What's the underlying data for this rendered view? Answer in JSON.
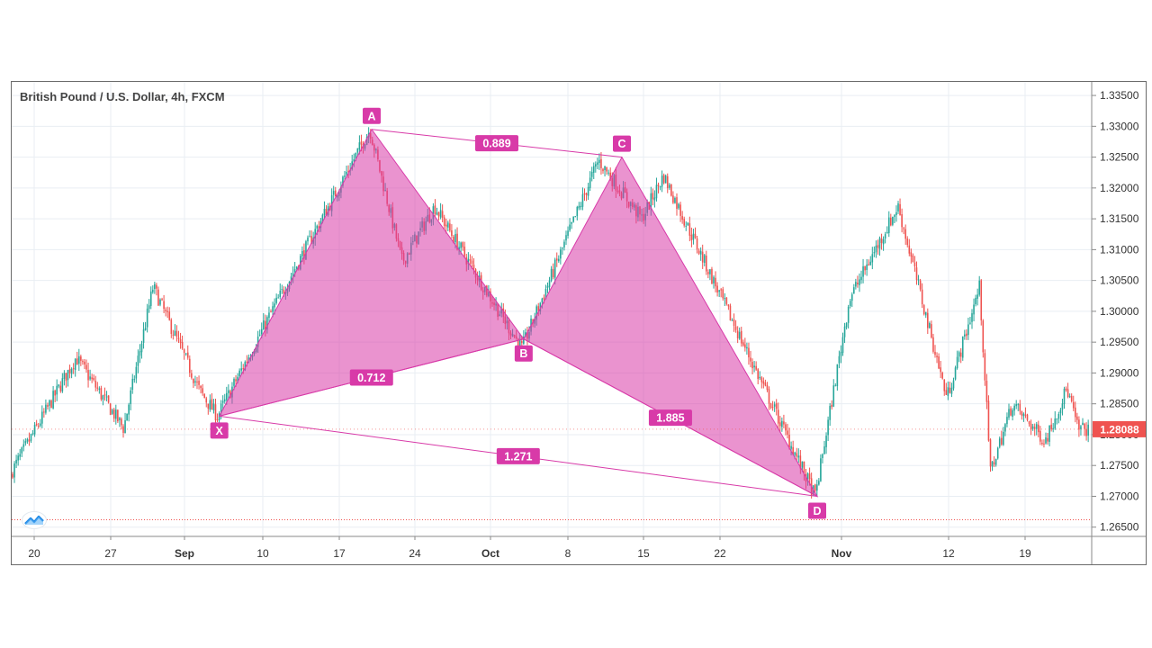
{
  "app": {
    "title": "British Pound / U.S. Dollar, 4h, FXCM",
    "current_price": "1.28088"
  },
  "colors": {
    "up": "#26a69a",
    "down": "#ef5350",
    "pattern": "#d83aa8",
    "pattern_fill": "rgba(216,58,168,0.55)",
    "grid": "#e9eef3",
    "axis_text": "#333333",
    "price_badge": "#ef5350",
    "dotted_line": "#ef5350"
  },
  "chart_data": {
    "type": "candlestick",
    "title": "British Pound / U.S. Dollar, 4h, FXCM",
    "x_ticks": [
      "20",
      "27",
      "Sep",
      "10",
      "17",
      "24",
      "Oct",
      "8",
      "15",
      "22",
      "Nov",
      "12",
      "19"
    ],
    "y_ticks": [
      "1.33500",
      "1.33000",
      "1.32500",
      "1.32000",
      "1.31500",
      "1.31000",
      "1.30500",
      "1.30000",
      "1.29500",
      "1.29000",
      "1.28500",
      "1.28000",
      "1.27500",
      "1.27000",
      "1.26500"
    ],
    "ylim": [
      1.2635,
      1.3372
    ],
    "last_price": 1.28088,
    "price_path_key_points": [
      {
        "date": "Aug 17",
        "price": 1.2705
      },
      {
        "date": "Aug 24",
        "price": 1.2925
      },
      {
        "date": "Aug 28",
        "price": 1.281
      },
      {
        "date": "Aug 30",
        "price": 1.304
      },
      {
        "date": "Sep 3",
        "price": 1.287
      },
      {
        "date": "Sep 5",
        "price": 1.283
      },
      {
        "date": "Sep 11",
        "price": 1.3
      },
      {
        "date": "Sep 20",
        "price": 1.3295
      },
      {
        "date": "Sep 23",
        "price": 1.308
      },
      {
        "date": "Sep 26",
        "price": 1.317
      },
      {
        "date": "Oct 4",
        "price": 1.294
      },
      {
        "date": "Oct 11",
        "price": 1.3245
      },
      {
        "date": "Oct 15",
        "price": 1.315
      },
      {
        "date": "Oct 17",
        "price": 1.322
      },
      {
        "date": "Oct 30",
        "price": 1.27
      },
      {
        "date": "Nov 2",
        "price": 1.302
      },
      {
        "date": "Nov 7",
        "price": 1.317
      },
      {
        "date": "Nov 12",
        "price": 1.286
      },
      {
        "date": "Nov 15",
        "price": 1.304
      },
      {
        "date": "Nov 16",
        "price": 1.274
      },
      {
        "date": "Nov 18",
        "price": 1.285
      },
      {
        "date": "Nov 21",
        "price": 1.279
      },
      {
        "date": "Nov 23",
        "price": 1.2875
      },
      {
        "date": "Nov 24",
        "price": 1.2809
      }
    ],
    "pattern": {
      "points": [
        {
          "label": "X",
          "date": "Sep 5",
          "price": 1.283
        },
        {
          "label": "A",
          "date": "Sep 20",
          "price": 1.3295
        },
        {
          "label": "B",
          "date": "Oct 4",
          "price": 1.2955
        },
        {
          "label": "C",
          "date": "Oct 13",
          "price": 1.325
        },
        {
          "label": "D",
          "date": "Oct 30",
          "price": 1.27
        }
      ],
      "ratios": [
        {
          "value": "0.712",
          "between": [
            "X",
            "B"
          ]
        },
        {
          "value": "0.889",
          "between": [
            "A",
            "C"
          ]
        },
        {
          "value": "1.885",
          "between": [
            "B",
            "D"
          ]
        },
        {
          "value": "1.271",
          "between": [
            "X",
            "D"
          ]
        }
      ]
    },
    "dotted_line_price": 1.2662
  }
}
